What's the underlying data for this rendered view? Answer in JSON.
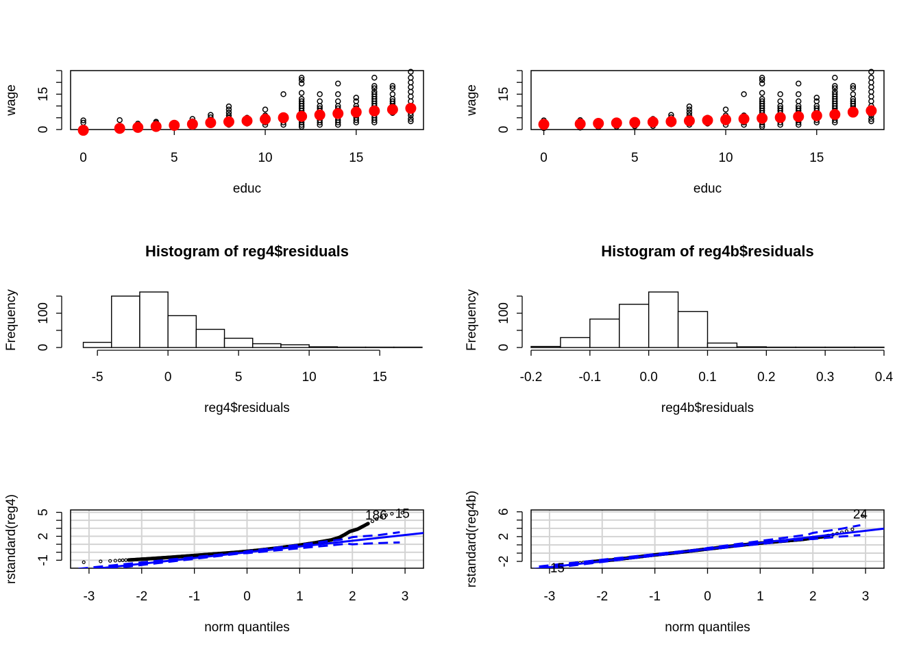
{
  "chart_data": [
    {
      "type": "scatter",
      "title": "",
      "xlabel": "educ",
      "ylabel": "wage",
      "xlim": [
        -0.7,
        18.7
      ],
      "ylim": [
        0,
        25
      ],
      "xticks": [
        0,
        5,
        10,
        15
      ],
      "yticks": [
        0,
        15
      ],
      "series": [
        {
          "style": "open-circles",
          "color": "#000000",
          "groups": [
            {
              "x": 0,
              "y": [
                0.6,
                2.9,
                3.9
              ]
            },
            {
              "x": 2,
              "y": [
                0.8,
                4.0
              ]
            },
            {
              "x": 3,
              "y": [
                1.0,
                2.0,
                2.5
              ]
            },
            {
              "x": 4,
              "y": [
                1.2,
                2.0,
                2.8,
                3.3
              ]
            },
            {
              "x": 5,
              "y": [
                1.4,
                2.2
              ]
            },
            {
              "x": 6,
              "y": [
                1.5,
                2.6,
                3.5,
                4.5
              ]
            },
            {
              "x": 7,
              "y": [
                2.2,
                3.0,
                4.0,
                5.2,
                6.2
              ]
            },
            {
              "x": 8,
              "y": [
                2.0,
                3.0,
                4.0,
                5.0,
                6.0,
                7.2,
                8.5,
                9.8
              ]
            },
            {
              "x": 9,
              "y": [
                2.5,
                3.0,
                3.8,
                4.5,
                5.0
              ]
            },
            {
              "x": 10,
              "y": [
                2.0,
                3.0,
                4.0,
                5.0,
                6.0,
                8.5
              ]
            },
            {
              "x": 11,
              "y": [
                2.0,
                3.0,
                4.0,
                5.0,
                6.0,
                15.0
              ]
            },
            {
              "x": 12,
              "y": [
                1.2,
                2.0,
                3.0,
                4.0,
                5.0,
                6.0,
                7.0,
                8.0,
                9.0,
                10.0,
                11.0,
                12.0,
                13.0,
                15.5,
                19.5,
                21.0,
                22.0
              ]
            },
            {
              "x": 13,
              "y": [
                2.0,
                3.0,
                4.0,
                5.0,
                6.0,
                7.0,
                8.0,
                9.0,
                10.0,
                12.0,
                15.0
              ]
            },
            {
              "x": 14,
              "y": [
                2.0,
                3.0,
                4.0,
                5.0,
                6.0,
                7.0,
                8.0,
                9.0,
                10.0,
                12.0,
                15.0,
                19.5
              ]
            },
            {
              "x": 15,
              "y": [
                3.0,
                4.0,
                5.0,
                6.0,
                7.0,
                8.0,
                9.0,
                10.0,
                12.0,
                13.5
              ]
            },
            {
              "x": 16,
              "y": [
                3.0,
                4.0,
                5.0,
                6.0,
                7.0,
                8.0,
                9.0,
                10.0,
                11.0,
                12.0,
                13.0,
                14.0,
                15.0,
                16.0,
                17.5,
                18.5,
                22.0
              ]
            },
            {
              "x": 17,
              "y": [
                7.0,
                8.0,
                9.0,
                10.0,
                11.0,
                12.0,
                13.0,
                15.0,
                17.5,
                18.5
              ]
            },
            {
              "x": 18,
              "y": [
                3.5,
                4.5,
                6.0,
                7.0,
                8.0,
                9.0,
                10.0,
                12.0,
                14.0,
                16.0,
                18.0,
                20.0,
                22.0,
                24.5
              ]
            }
          ]
        },
        {
          "style": "filled-circles",
          "color": "#ff0000",
          "x": [
            0,
            2,
            3,
            4,
            5,
            6,
            7,
            8,
            9,
            10,
            11,
            12,
            13,
            14,
            15,
            16,
            17,
            18
          ],
          "y": [
            -0.3,
            0.5,
            0.9,
            1.3,
            1.8,
            2.3,
            2.9,
            3.3,
            3.7,
            4.4,
            5.0,
            5.6,
            6.2,
            6.8,
            7.4,
            7.9,
            8.5,
            9.0
          ]
        }
      ]
    },
    {
      "type": "scatter",
      "title": "",
      "xlabel": "educ",
      "ylabel": "wage",
      "xlim": [
        -0.7,
        18.7
      ],
      "ylim": [
        0,
        25
      ],
      "xticks": [
        0,
        5,
        10,
        15
      ],
      "yticks": [
        0,
        15
      ],
      "series": [
        {
          "style": "open-circles",
          "color": "#000000",
          "groups": [
            {
              "x": 0,
              "y": [
                0.6,
                2.9,
                3.9
              ]
            },
            {
              "x": 2,
              "y": [
                0.8,
                4.0
              ]
            },
            {
              "x": 3,
              "y": [
                1.0,
                2.0,
                2.5
              ]
            },
            {
              "x": 4,
              "y": [
                1.2,
                2.0,
                2.8,
                3.3
              ]
            },
            {
              "x": 5,
              "y": [
                1.4,
                2.2
              ]
            },
            {
              "x": 6,
              "y": [
                1.5,
                2.6,
                3.5,
                4.5
              ]
            },
            {
              "x": 7,
              "y": [
                2.2,
                3.0,
                4.0,
                5.2,
                6.2
              ]
            },
            {
              "x": 8,
              "y": [
                2.0,
                3.0,
                4.0,
                5.0,
                6.0,
                7.2,
                8.5,
                9.8
              ]
            },
            {
              "x": 9,
              "y": [
                2.5,
                3.0,
                3.8,
                4.5,
                5.0
              ]
            },
            {
              "x": 10,
              "y": [
                2.0,
                3.0,
                4.0,
                5.0,
                6.0,
                8.5
              ]
            },
            {
              "x": 11,
              "y": [
                2.0,
                3.0,
                4.0,
                5.0,
                6.0,
                15.0
              ]
            },
            {
              "x": 12,
              "y": [
                1.2,
                2.0,
                3.0,
                4.0,
                5.0,
                6.0,
                7.0,
                8.0,
                9.0,
                10.0,
                11.0,
                12.0,
                13.0,
                15.5,
                19.5,
                21.0,
                22.0
              ]
            },
            {
              "x": 13,
              "y": [
                2.0,
                3.0,
                4.0,
                5.0,
                6.0,
                7.0,
                8.0,
                9.0,
                10.0,
                12.0,
                15.0
              ]
            },
            {
              "x": 14,
              "y": [
                2.0,
                3.0,
                4.0,
                5.0,
                6.0,
                7.0,
                8.0,
                9.0,
                10.0,
                12.0,
                15.0,
                19.5
              ]
            },
            {
              "x": 15,
              "y": [
                3.0,
                4.0,
                5.0,
                6.0,
                7.0,
                8.0,
                9.0,
                10.0,
                12.0,
                13.5
              ]
            },
            {
              "x": 16,
              "y": [
                3.0,
                4.0,
                5.0,
                6.0,
                7.0,
                8.0,
                9.0,
                10.0,
                11.0,
                12.0,
                13.0,
                14.0,
                15.0,
                16.0,
                17.5,
                18.5,
                22.0
              ]
            },
            {
              "x": 17,
              "y": [
                7.0,
                8.0,
                9.0,
                10.0,
                11.0,
                12.0,
                13.0,
                15.0,
                17.5,
                18.5
              ]
            },
            {
              "x": 18,
              "y": [
                3.5,
                4.5,
                6.0,
                7.0,
                8.0,
                9.0,
                10.0,
                12.0,
                14.0,
                16.0,
                18.0,
                20.0,
                22.0,
                24.5
              ]
            }
          ]
        },
        {
          "style": "filled-circles",
          "color": "#ff0000",
          "x": [
            0,
            2,
            3,
            4,
            5,
            6,
            7,
            8,
            9,
            10,
            11,
            12,
            13,
            14,
            15,
            16,
            17,
            18
          ],
          "y": [
            2.2,
            2.4,
            2.6,
            2.8,
            3.0,
            3.2,
            3.4,
            3.7,
            3.9,
            4.2,
            4.5,
            4.8,
            5.1,
            5.5,
            5.9,
            6.4,
            7.4,
            8.0
          ]
        }
      ]
    },
    {
      "type": "bar",
      "subtype": "histogram",
      "title": "Histogram of reg4$residuals",
      "xlabel": "reg4$residuals",
      "ylabel": "Frequency",
      "xlim": [
        -6.9,
        18.1
      ],
      "ylim": [
        0,
        160
      ],
      "xticks": [
        -5,
        0,
        5,
        10,
        15
      ],
      "yticks": [
        0,
        100
      ],
      "breaks": [
        -6,
        -4,
        -2,
        0,
        2,
        4,
        6,
        8,
        10,
        12,
        14,
        16,
        18
      ],
      "values": [
        15,
        150,
        162,
        93,
        53,
        27,
        11,
        8,
        2,
        1,
        1,
        1
      ]
    },
    {
      "type": "bar",
      "subtype": "histogram",
      "title": "Histogram of reg4b$residuals",
      "xlabel": "reg4b$residuals",
      "ylabel": "Frequency",
      "xlim": [
        -0.2,
        0.4
      ],
      "ylim": [
        0,
        160
      ],
      "xticks": [
        -0.2,
        -0.1,
        0.0,
        0.1,
        0.2,
        0.3,
        0.4
      ],
      "xtick_labels": [
        "-0.2",
        "-0.1",
        "0.0",
        "0.1",
        "0.2",
        "0.3",
        "0.4"
      ],
      "yticks": [
        0,
        100
      ],
      "breaks": [
        -0.2,
        -0.15,
        -0.1,
        -0.05,
        0.0,
        0.05,
        0.1,
        0.15,
        0.2,
        0.25,
        0.3,
        0.35,
        0.4
      ],
      "values": [
        3,
        29,
        83,
        126,
        162,
        105,
        13,
        2,
        1,
        1,
        1,
        1
      ]
    },
    {
      "type": "scatter",
      "subtype": "qqplot",
      "title": "",
      "xlabel": "norm quantiles",
      "ylabel": "rstandard(reg4)",
      "xlim": [
        -3.35,
        3.35
      ],
      "ylim": [
        -2.0,
        5.3
      ],
      "xticks": [
        -3,
        -2,
        -1,
        0,
        1,
        2,
        3
      ],
      "yticks": [
        -1,
        2,
        5
      ],
      "point_labels": [
        {
          "text": "186",
          "x": 2.45,
          "y": 4.7
        },
        {
          "text": "15",
          "x": 2.95,
          "y": 4.9
        }
      ],
      "ref_line": {
        "intercept": 0.0,
        "slope": 0.72
      },
      "band_upper": {
        "x": [
          2.0,
          2.5,
          3.0
        ],
        "y": [
          1.9,
          2.15,
          2.6
        ]
      },
      "band_lower": {
        "x": [
          2.0,
          2.5,
          3.0
        ],
        "y": [
          1.0,
          1.15,
          1.25
        ]
      },
      "curve": {
        "x": [
          -3.1,
          -2.8,
          -2.5,
          -2.2,
          -1.8,
          -1.4,
          -1.0,
          -0.6,
          -0.2,
          0.2,
          0.6,
          1.0,
          1.3,
          1.6,
          1.75,
          1.85,
          1.95,
          2.1,
          2.3,
          2.5,
          2.7,
          2.95
        ],
        "y": [
          -1.25,
          -1.15,
          -1.05,
          -0.95,
          -0.78,
          -0.6,
          -0.4,
          -0.2,
          0.0,
          0.25,
          0.55,
          0.9,
          1.2,
          1.55,
          1.85,
          2.2,
          2.6,
          2.9,
          3.6,
          4.3,
          4.8,
          4.95
        ]
      }
    },
    {
      "type": "scatter",
      "subtype": "qqplot",
      "title": "",
      "xlabel": "norm quantiles",
      "ylabel": "rstandard(reg4b)",
      "xlim": [
        -3.35,
        3.35
      ],
      "ylim": [
        -3.1,
        6.3
      ],
      "xticks": [
        -3,
        -2,
        -1,
        0,
        1,
        2,
        3
      ],
      "yticks": [
        -2,
        2,
        6
      ],
      "point_labels": [
        {
          "text": "24",
          "x": 2.9,
          "y": 5.7
        },
        {
          "text": "15",
          "x": -2.85,
          "y": -3.0
        }
      ],
      "ref_line": {
        "intercept": 0.0,
        "slope": 0.98
      },
      "band_upper": {
        "x": [
          2.0,
          2.5,
          3.0
        ],
        "y": [
          2.6,
          3.2,
          4.0
        ]
      },
      "band_lower": {
        "x": [
          2.0,
          2.5,
          3.0
        ],
        "y": [
          1.6,
          2.0,
          2.3
        ]
      },
      "curve": {
        "x": [
          -3.1,
          -2.8,
          -2.5,
          -2.2,
          -1.8,
          -1.4,
          -1.0,
          -0.6,
          -0.2,
          0.2,
          0.6,
          1.0,
          1.4,
          1.8,
          2.2,
          2.4,
          2.6,
          2.8,
          2.98
        ],
        "y": [
          -3.05,
          -2.6,
          -2.3,
          -2.05,
          -1.75,
          -1.35,
          -0.95,
          -0.6,
          -0.2,
          0.2,
          0.6,
          0.95,
          1.25,
          1.55,
          2.0,
          2.35,
          2.8,
          3.3,
          5.7
        ]
      }
    }
  ]
}
